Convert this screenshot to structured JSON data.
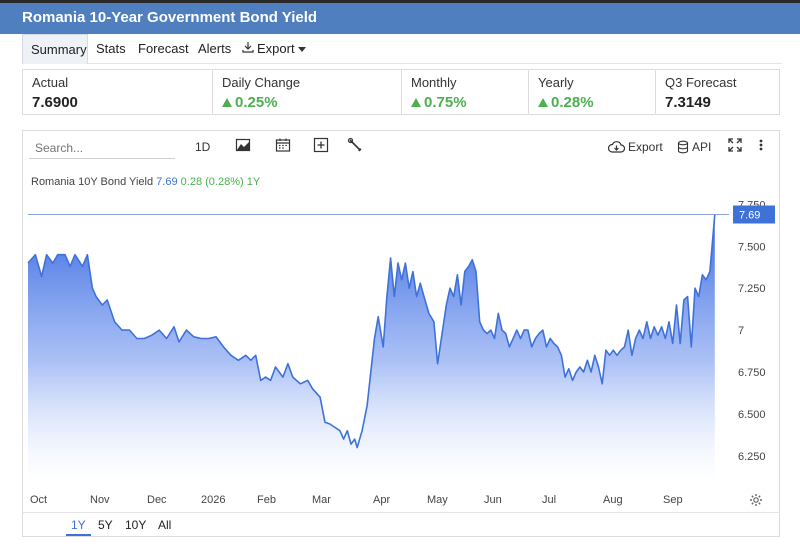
{
  "header": {
    "title": "Romania 10-Year Government Bond Yield"
  },
  "tabs": [
    {
      "label": "Summary",
      "active": true
    },
    {
      "label": "Stats"
    },
    {
      "label": "Forecast"
    },
    {
      "label": "Alerts"
    },
    {
      "label": "Export",
      "icon": "download-icon",
      "dropdown": true
    }
  ],
  "stats": [
    {
      "label": "Actual",
      "value": "7.6900"
    },
    {
      "label": "Daily Change",
      "value": "0.25%",
      "direction": "up"
    },
    {
      "label": "Monthly",
      "value": "0.75%",
      "direction": "up"
    },
    {
      "label": "Yearly",
      "value": "0.28%",
      "direction": "up"
    },
    {
      "label": "Q3 Forecast",
      "value": "7.3149"
    }
  ],
  "toolbar": {
    "search_placeholder": "Search...",
    "interval": "1D",
    "export_label": "Export",
    "api_label": "API",
    "icons": [
      "chart-type-icon",
      "calendar-icon",
      "add-indicator-icon",
      "tools-icon",
      "cloud-download-icon",
      "database-icon",
      "fullscreen-icon",
      "more-vertical-icon"
    ]
  },
  "legend": {
    "name": "Romania 10Y Bond Yield",
    "value": "7.69",
    "change": "0.28 (0.28%)",
    "period": "1Y"
  },
  "ranges": [
    {
      "label": "1Y",
      "active": true
    },
    {
      "label": "5Y"
    },
    {
      "label": "10Y"
    },
    {
      "label": "All"
    }
  ],
  "colors": {
    "header": "#4f7fbf",
    "line": "#3f72d8",
    "up": "#4caf50"
  },
  "chart_data": {
    "type": "area",
    "xlabel": "",
    "ylabel": "",
    "x_ticks": [
      "Oct",
      "Nov",
      "Dec",
      "2026",
      "Feb",
      "Mar",
      "Apr",
      "May",
      "Jun",
      "Jul",
      "Aug",
      "Sep"
    ],
    "y_ticks": [
      "6.250",
      "6.500",
      "6.750",
      "7",
      "7.250",
      "7.500",
      "7.750"
    ],
    "ylim": [
      6.1,
      7.83
    ],
    "last_value_label": "7.69",
    "grid": false,
    "series": [
      {
        "name": "Romania 10Y Bond Yield",
        "points": [
          [
            0.0,
            7.4
          ],
          [
            0.3,
            7.45
          ],
          [
            0.55,
            7.32
          ],
          [
            0.75,
            7.45
          ],
          [
            1.0,
            7.4
          ],
          [
            1.2,
            7.45
          ],
          [
            1.5,
            7.45
          ],
          [
            1.7,
            7.38
          ],
          [
            1.9,
            7.45
          ],
          [
            2.2,
            7.38
          ],
          [
            2.4,
            7.45
          ],
          [
            2.6,
            7.25
          ],
          [
            2.75,
            7.2
          ],
          [
            3.0,
            7.15
          ],
          [
            3.2,
            7.18
          ],
          [
            3.5,
            7.05
          ],
          [
            3.8,
            7.0
          ],
          [
            4.1,
            7.0
          ],
          [
            4.4,
            6.95
          ],
          [
            4.7,
            6.95
          ],
          [
            5.0,
            6.97
          ],
          [
            5.3,
            7.0
          ],
          [
            5.6,
            6.95
          ],
          [
            5.9,
            7.02
          ],
          [
            6.1,
            6.93
          ],
          [
            6.4,
            7.0
          ],
          [
            6.7,
            6.96
          ],
          [
            7.0,
            6.95
          ],
          [
            7.3,
            6.95
          ],
          [
            7.6,
            6.96
          ],
          [
            7.9,
            6.9
          ],
          [
            8.2,
            6.85
          ],
          [
            8.5,
            6.82
          ],
          [
            8.8,
            6.85
          ],
          [
            9.0,
            6.82
          ],
          [
            9.2,
            6.85
          ],
          [
            9.4,
            6.7
          ],
          [
            9.6,
            6.72
          ],
          [
            9.8,
            6.7
          ],
          [
            10.0,
            6.78
          ],
          [
            10.3,
            6.72
          ],
          [
            10.5,
            6.8
          ],
          [
            10.7,
            6.72
          ],
          [
            11.0,
            6.68
          ],
          [
            11.3,
            6.7
          ],
          [
            11.5,
            6.65
          ],
          [
            11.8,
            6.6
          ],
          [
            12.0,
            6.45
          ],
          [
            12.2,
            6.44
          ],
          [
            12.4,
            6.42
          ],
          [
            12.6,
            6.4
          ],
          [
            12.75,
            6.35
          ],
          [
            12.9,
            6.4
          ],
          [
            13.05,
            6.32
          ],
          [
            13.2,
            6.35
          ],
          [
            13.3,
            6.3
          ],
          [
            13.5,
            6.4
          ],
          [
            13.7,
            6.55
          ],
          [
            13.85,
            6.75
          ],
          [
            14.0,
            6.95
          ],
          [
            14.15,
            7.08
          ],
          [
            14.35,
            6.9
          ],
          [
            14.5,
            7.2
          ],
          [
            14.65,
            7.43
          ],
          [
            14.8,
            7.2
          ],
          [
            14.95,
            7.4
          ],
          [
            15.1,
            7.3
          ],
          [
            15.25,
            7.4
          ],
          [
            15.4,
            7.25
          ],
          [
            15.55,
            7.35
          ],
          [
            15.7,
            7.2
          ],
          [
            15.85,
            7.28
          ],
          [
            16.0,
            7.2
          ],
          [
            16.2,
            7.1
          ],
          [
            16.4,
            7.05
          ],
          [
            16.55,
            6.8
          ],
          [
            16.75,
            7.0
          ],
          [
            16.9,
            7.15
          ],
          [
            17.05,
            7.25
          ],
          [
            17.2,
            7.2
          ],
          [
            17.35,
            7.33
          ],
          [
            17.5,
            7.15
          ],
          [
            17.65,
            7.35
          ],
          [
            17.8,
            7.38
          ],
          [
            17.95,
            7.42
          ],
          [
            18.1,
            7.35
          ],
          [
            18.25,
            7.05
          ],
          [
            18.4,
            7.0
          ],
          [
            18.55,
            6.98
          ],
          [
            18.7,
            7.0
          ],
          [
            18.85,
            6.95
          ],
          [
            19.0,
            7.1
          ],
          [
            19.15,
            7.0
          ],
          [
            19.3,
            6.98
          ],
          [
            19.45,
            6.9
          ],
          [
            19.6,
            6.95
          ],
          [
            19.75,
            7.0
          ],
          [
            19.9,
            6.95
          ],
          [
            20.05,
            7.0
          ],
          [
            20.2,
            7.0
          ],
          [
            20.35,
            6.9
          ],
          [
            20.5,
            6.95
          ],
          [
            20.65,
            6.98
          ],
          [
            20.8,
            7.0
          ],
          [
            20.95,
            6.9
          ],
          [
            21.1,
            6.95
          ],
          [
            21.25,
            6.92
          ],
          [
            21.4,
            6.9
          ],
          [
            21.55,
            6.85
          ],
          [
            21.7,
            6.72
          ],
          [
            21.85,
            6.77
          ],
          [
            22.0,
            6.7
          ],
          [
            22.15,
            6.75
          ],
          [
            22.3,
            6.78
          ],
          [
            22.45,
            6.75
          ],
          [
            22.6,
            6.82
          ],
          [
            22.75,
            6.75
          ],
          [
            22.9,
            6.85
          ],
          [
            23.05,
            6.78
          ],
          [
            23.2,
            6.68
          ],
          [
            23.35,
            6.88
          ],
          [
            23.5,
            6.85
          ],
          [
            23.65,
            6.88
          ],
          [
            23.8,
            6.85
          ],
          [
            23.95,
            6.88
          ],
          [
            24.1,
            6.9
          ],
          [
            24.25,
            7.0
          ],
          [
            24.4,
            6.85
          ],
          [
            24.55,
            6.95
          ],
          [
            24.7,
            7.0
          ],
          [
            24.85,
            6.95
          ],
          [
            25.0,
            7.05
          ],
          [
            25.15,
            6.95
          ],
          [
            25.3,
            7.02
          ],
          [
            25.45,
            6.97
          ],
          [
            25.6,
            7.02
          ],
          [
            25.75,
            6.95
          ],
          [
            25.9,
            7.05
          ],
          [
            26.05,
            6.92
          ],
          [
            26.2,
            7.15
          ],
          [
            26.35,
            6.92
          ],
          [
            26.5,
            7.18
          ],
          [
            26.65,
            7.2
          ],
          [
            26.8,
            6.9
          ],
          [
            26.95,
            7.25
          ],
          [
            27.1,
            7.2
          ],
          [
            27.25,
            7.33
          ],
          [
            27.4,
            7.3
          ],
          [
            27.55,
            7.35
          ],
          [
            27.75,
            7.69
          ]
        ]
      }
    ]
  }
}
